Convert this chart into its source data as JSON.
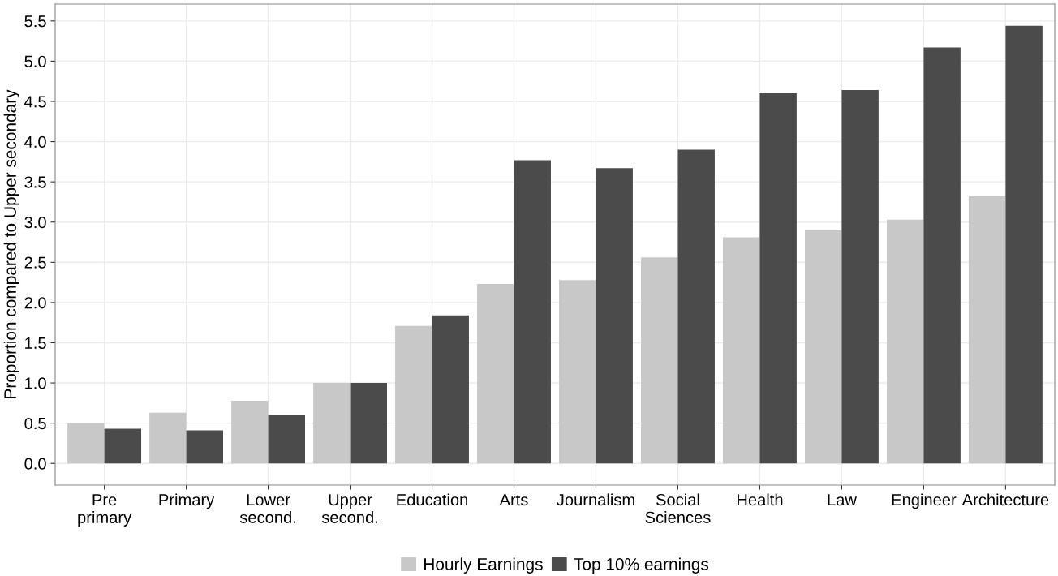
{
  "chart_data": {
    "type": "bar",
    "ylabel": "Proportion compared to Upper secondary",
    "categories": [
      "Pre\nprimary",
      "Primary",
      "Lower\nsecond.",
      "Upper\nsecond.",
      "Education",
      "Arts",
      "Journalism",
      "Social\nSciences",
      "Health",
      "Law",
      "Engineer",
      "Architecture"
    ],
    "series": [
      {
        "name": "Hourly Earnings",
        "color": "#c8c8c8",
        "values": [
          0.5,
          0.63,
          0.78,
          1.0,
          1.71,
          2.23,
          2.28,
          2.56,
          2.81,
          2.9,
          3.03,
          3.32
        ]
      },
      {
        "name": "Top 10% earnings",
        "color": "#4b4b4b",
        "values": [
          0.43,
          0.41,
          0.6,
          1.0,
          1.84,
          3.77,
          3.67,
          3.9,
          4.6,
          4.64,
          5.17,
          5.44
        ]
      }
    ],
    "ylim": [
      -0.27,
      5.71
    ],
    "yticks": [
      {
        "value": 0,
        "label": "0.0"
      },
      0.5,
      {
        "value": 1,
        "label": "1.0"
      },
      1.5,
      {
        "value": 2,
        "label": "2.0"
      },
      2.5,
      {
        "value": 3,
        "label": "3.0"
      },
      3.5,
      {
        "value": 4,
        "label": "4.0"
      },
      4.5,
      {
        "value": 5,
        "label": "5.0"
      },
      5.5
    ],
    "grid": true,
    "legend": "bottom"
  }
}
